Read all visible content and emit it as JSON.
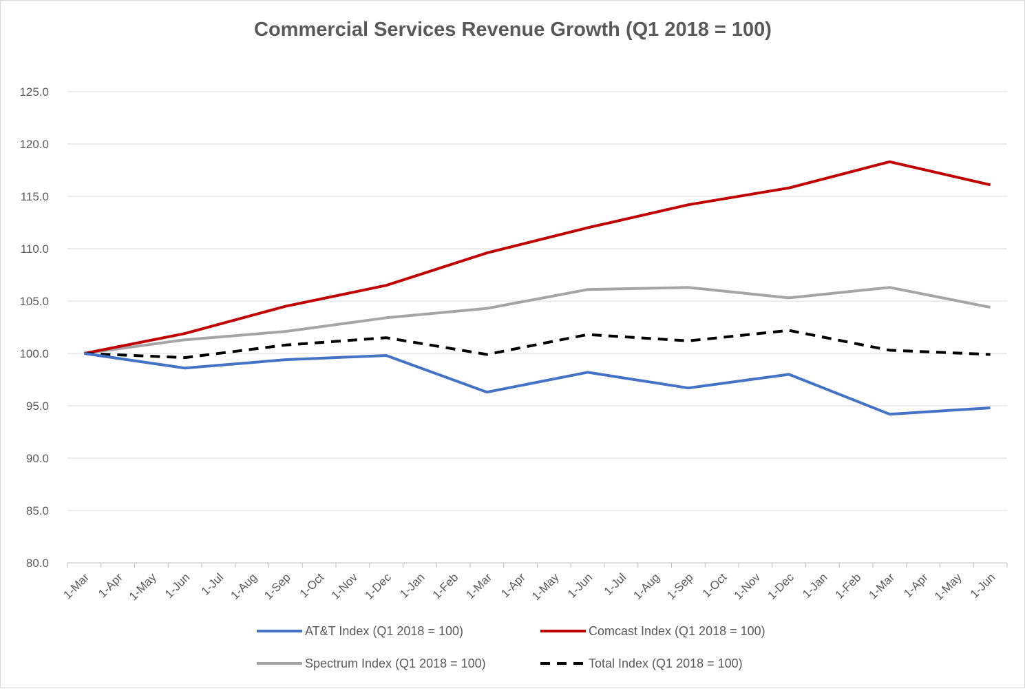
{
  "chart_data": {
    "type": "line",
    "title": "Commercial Services Revenue Growth (Q1 2018 = 100)",
    "xlabel": "",
    "ylabel": "",
    "ylim": [
      80,
      125
    ],
    "y_ticks": [
      "80.0",
      "85.0",
      "90.0",
      "95.0",
      "100.0",
      "105.0",
      "110.0",
      "115.0",
      "120.0",
      "125.0"
    ],
    "grid": true,
    "legend_placement": "bottom",
    "categories": [
      "1-Mar",
      "1-Apr",
      "1-May",
      "1-Jun",
      "1-Jul",
      "1-Aug",
      "1-Sep",
      "1-Oct",
      "1-Nov",
      "1-Dec",
      "1-Jan",
      "1-Feb",
      "1-Mar",
      "1-Apr",
      "1-May",
      "1-Jun",
      "1-Jul",
      "1-Aug",
      "1-Sep",
      "1-Oct",
      "1-Nov",
      "1-Dec",
      "1-Jan",
      "1-Feb",
      "1-Mar",
      "1-Apr",
      "1-May",
      "1-Jun"
    ],
    "series": [
      {
        "name": "AT&T Index (Q1 2018 = 100)",
        "color": "#4472c4",
        "dash": false,
        "values": [
          100.0,
          null,
          null,
          98.6,
          null,
          null,
          99.4,
          null,
          null,
          99.8,
          null,
          null,
          96.3,
          null,
          null,
          98.2,
          null,
          null,
          96.7,
          null,
          null,
          98.0,
          null,
          null,
          94.2,
          null,
          null,
          94.8
        ]
      },
      {
        "name": "Comcast Index (Q1 2018 = 100)",
        "color": "#c00000",
        "dash": false,
        "values": [
          100.0,
          null,
          null,
          101.9,
          null,
          null,
          104.5,
          null,
          null,
          106.5,
          null,
          null,
          109.6,
          null,
          null,
          112.0,
          null,
          null,
          114.2,
          null,
          null,
          115.8,
          null,
          null,
          118.3,
          null,
          null,
          116.1
        ]
      },
      {
        "name": "Spectrum Index (Q1 2018 = 100)",
        "color": "#a5a5a5",
        "dash": false,
        "values": [
          100.0,
          null,
          null,
          101.3,
          null,
          null,
          102.1,
          null,
          null,
          103.4,
          null,
          null,
          104.3,
          null,
          null,
          106.1,
          null,
          null,
          106.3,
          null,
          null,
          105.3,
          null,
          null,
          106.3,
          null,
          null,
          104.4
        ]
      },
      {
        "name": "Total Index (Q1 2018 = 100)",
        "color": "#000000",
        "dash": true,
        "values": [
          100.0,
          null,
          null,
          99.6,
          null,
          null,
          100.8,
          null,
          null,
          101.5,
          null,
          null,
          99.9,
          null,
          null,
          101.8,
          null,
          null,
          101.2,
          null,
          null,
          102.2,
          null,
          null,
          100.3,
          null,
          null,
          99.9
        ]
      }
    ]
  }
}
